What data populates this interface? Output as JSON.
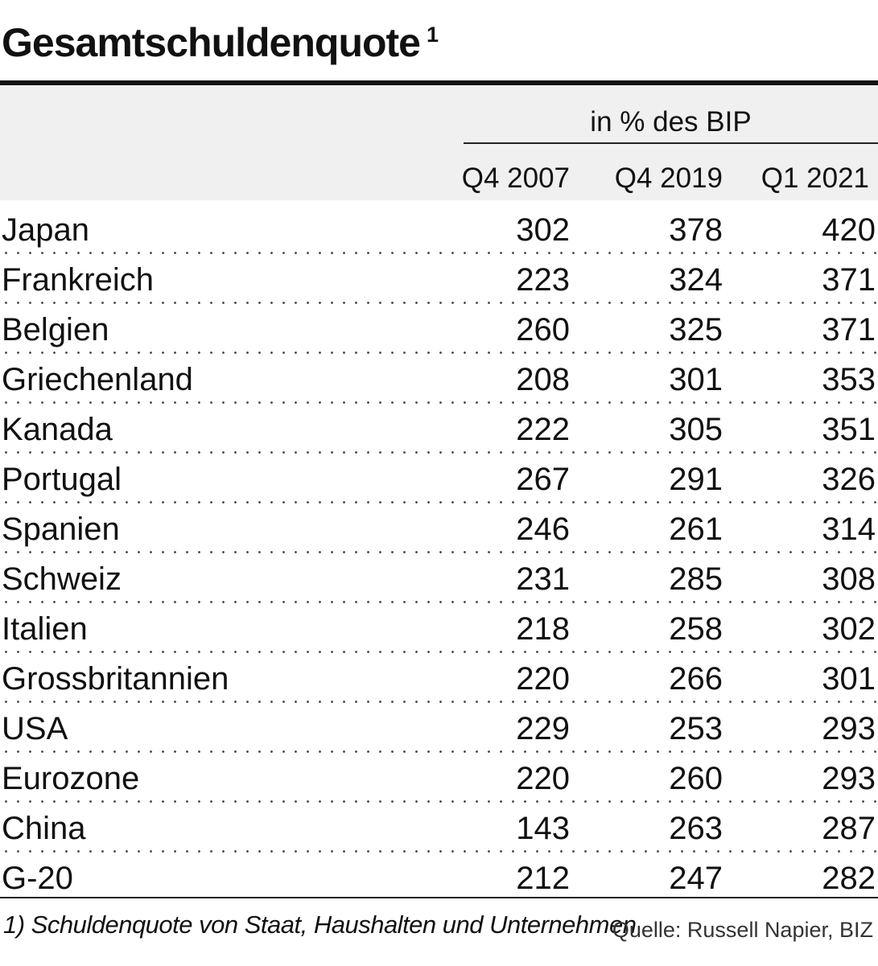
{
  "title": "Gesamtschuldenquote",
  "title_footnote_marker": "1",
  "chart_data": {
    "type": "table",
    "unit_label": "in % des BIP",
    "columns": [
      "Q4 2007",
      "Q4 2019",
      "Q1 2021"
    ],
    "rows": [
      {
        "country": "Japan",
        "values": [
          "302",
          "378",
          "420"
        ]
      },
      {
        "country": "Frankreich",
        "values": [
          "223",
          "324",
          "371"
        ]
      },
      {
        "country": "Belgien",
        "values": [
          "260",
          "325",
          "371"
        ]
      },
      {
        "country": "Griechenland",
        "values": [
          "208",
          "301",
          "353"
        ]
      },
      {
        "country": "Kanada",
        "values": [
          "222",
          "305",
          "351"
        ]
      },
      {
        "country": "Portugal",
        "values": [
          "267",
          "291",
          "326"
        ]
      },
      {
        "country": "Spanien",
        "values": [
          "246",
          "261",
          "314"
        ]
      },
      {
        "country": "Schweiz",
        "values": [
          "231",
          "285",
          "308"
        ]
      },
      {
        "country": "Italien",
        "values": [
          "218",
          "258",
          "302"
        ]
      },
      {
        "country": "Grossbritannien",
        "values": [
          "220",
          "266",
          "301"
        ]
      },
      {
        "country": "USA",
        "values": [
          "229",
          "253",
          "293"
        ]
      },
      {
        "country": "Eurozone",
        "values": [
          "220",
          "260",
          "293"
        ]
      },
      {
        "country": "China",
        "values": [
          "143",
          "263",
          "287"
        ]
      },
      {
        "country": "G-20",
        "values": [
          "212",
          "247",
          "282"
        ]
      }
    ]
  },
  "footnote": "1) Schuldenquote von Staat, Haushalten und Unternehmen",
  "source": "Quelle: Russell Napier, BIZ"
}
